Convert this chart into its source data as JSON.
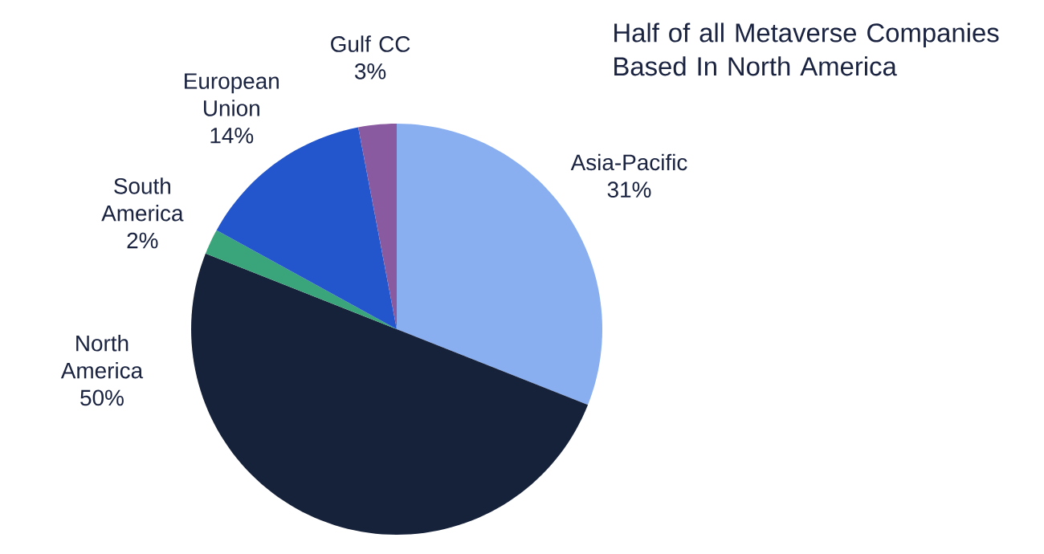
{
  "chart_data": {
    "type": "pie",
    "title": "Half of all Metaverse Companies Based In  North America",
    "categories": [
      "Asia-Pacific",
      "North America",
      "South America",
      "European Union",
      "Gulf CC"
    ],
    "values": [
      31,
      50,
      2,
      14,
      3
    ],
    "value_labels": [
      "31%",
      "50%",
      "2%",
      "14%",
      "3%"
    ],
    "colors": [
      "#8aaff0",
      "#16213a",
      "#3aa57a",
      "#2355cc",
      "#8a5aa0"
    ]
  }
}
